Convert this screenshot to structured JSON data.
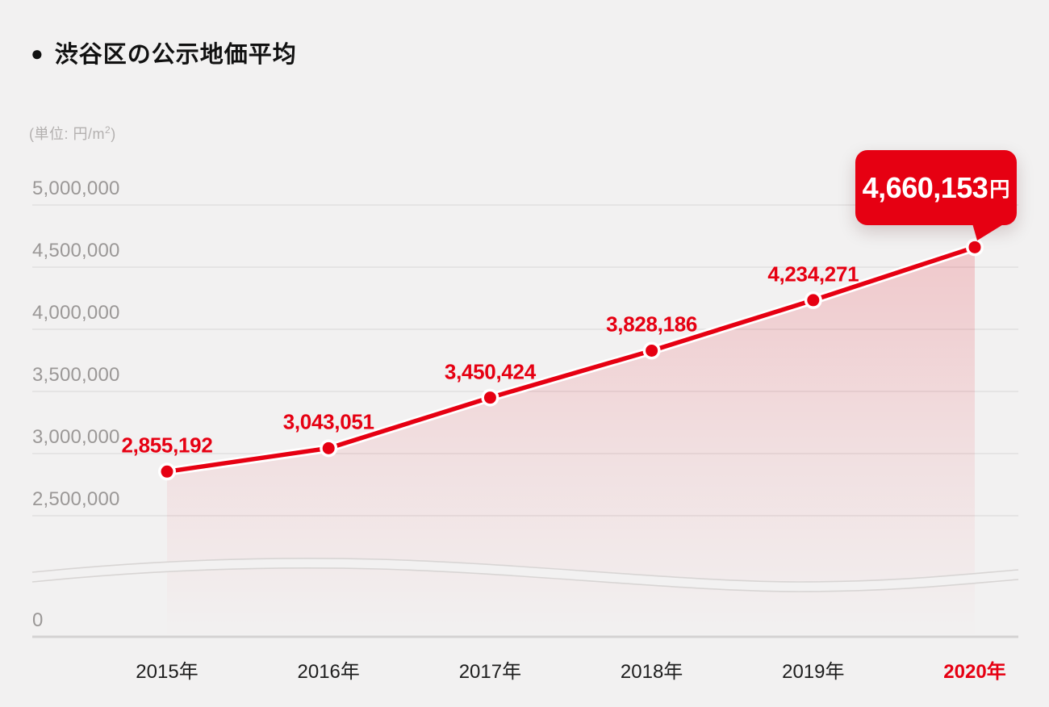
{
  "page": {
    "background": "#F2F1F1"
  },
  "header": {
    "bullet": "●",
    "title": "渋谷区の公示地価平均"
  },
  "unit_note": {
    "prefix": "(単位: 円/m",
    "sup": "2",
    "suffix": ")"
  },
  "tooltip": {
    "value": "4,660,153",
    "unit": "円"
  },
  "colors": {
    "accent": "#E60012",
    "background": "#F2F1F1",
    "gridline": "#DDDCDC",
    "zero_line": "#D4D2D2",
    "band_fill": "#F2F1F1",
    "band_edge": "#D8D5D4",
    "y_label": "#9B9897",
    "x_label": "#1E1E1E",
    "title": "#111111"
  },
  "chart_data": {
    "type": "area",
    "title": "渋谷区の公示地価平均",
    "unit": "円/m2",
    "x_labels": [
      "2015年",
      "2016年",
      "2017年",
      "2018年",
      "2019年",
      "2020年"
    ],
    "values": [
      2855192,
      3043051,
      3450424,
      3828186,
      4234271,
      4660153
    ],
    "point_labels": [
      "2,855,192",
      "3,043,051",
      "3,450,424",
      "3,828,186",
      "4,234,271"
    ],
    "highlight": {
      "x_label": "2020年",
      "value": 4660153,
      "label": "4,660,153円"
    },
    "y_ticks": [
      5000000,
      4500000,
      4000000,
      3500000,
      3000000,
      2500000,
      0
    ],
    "y_tick_labels": [
      "5,000,000",
      "4,500,000",
      "4,000,000",
      "3,500,000",
      "3,000,000",
      "2,500,000",
      "0"
    ],
    "axis_break": true,
    "grid": true,
    "legend": "none",
    "ylim": [
      0,
      5000000
    ]
  }
}
